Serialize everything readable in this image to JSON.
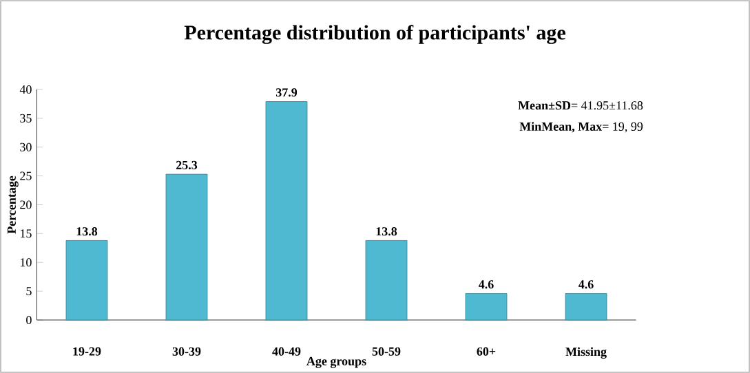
{
  "chart_data": {
    "type": "bar",
    "title": "Percentage distribution of participants' age",
    "xlabel": "Age groups",
    "ylabel": "Percentage",
    "categories": [
      "19-29",
      "30-39",
      "40-49",
      "50-59",
      "60+",
      "Missing"
    ],
    "values": [
      13.8,
      25.3,
      37.9,
      13.8,
      4.6,
      4.6
    ],
    "color": "#4fb9d1",
    "ylim": [
      0,
      40
    ],
    "yticks": [
      0,
      5,
      10,
      15,
      20,
      25,
      30,
      35,
      40
    ],
    "grid": false,
    "data_labels": true,
    "annotations": [
      "**Mean±SD**= 41.95±11.68",
      "**MinMean, Max**= 19, 99"
    ]
  }
}
